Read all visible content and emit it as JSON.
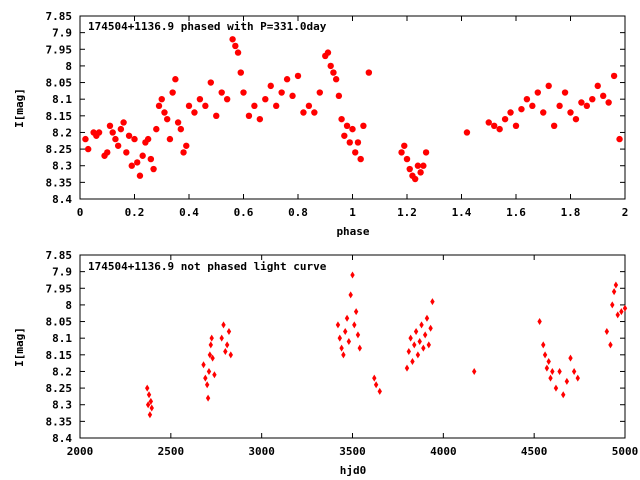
{
  "chart_data": [
    {
      "type": "scatter",
      "title": "174504+1136.9 phased with P=331.0day",
      "xlabel": "phase",
      "ylabel": "I[mag]",
      "xlim": [
        0,
        2
      ],
      "ylim": [
        8.4,
        7.85
      ],
      "y_inverted": true,
      "x_ticks": [
        "0",
        "0.2",
        "0.4",
        "0.6",
        "0.8",
        "1",
        "1.2",
        "1.4",
        "1.6",
        "1.8",
        "2"
      ],
      "y_ticks": [
        "7.85",
        "7.9",
        "7.95",
        "8",
        "8.05",
        "8.1",
        "8.15",
        "8.2",
        "8.25",
        "8.3",
        "8.35",
        "8.4"
      ],
      "marker_color": "#ff0000",
      "marker": "filled-circle",
      "series": [
        {
          "x": [
            0.02,
            0.03,
            0.05,
            0.06,
            0.07,
            0.09,
            0.1,
            0.11,
            0.12,
            0.13,
            0.14,
            0.15,
            0.16,
            0.17,
            0.18,
            0.19,
            0.2,
            0.21,
            0.22,
            0.23,
            0.24,
            0.25,
            0.26,
            0.27,
            0.28,
            0.29,
            0.3,
            0.31,
            0.32,
            0.33,
            0.34,
            0.35,
            0.36,
            0.37,
            0.38,
            0.39,
            0.4,
            0.42,
            0.44,
            0.46,
            0.48,
            0.5,
            0.52,
            0.54,
            0.56,
            0.57,
            0.58,
            0.59,
            0.6,
            0.62,
            0.64,
            0.66,
            0.68,
            0.7,
            0.72,
            0.74,
            0.76,
            0.78,
            0.8,
            0.82,
            0.84,
            0.86,
            0.88,
            0.9,
            0.91,
            0.92,
            0.93,
            0.94,
            0.95,
            0.96,
            0.97,
            0.98,
            0.99,
            1.0,
            1.01,
            1.02,
            1.03,
            1.04,
            1.06,
            1.18,
            1.19,
            1.2,
            1.21,
            1.22,
            1.23,
            1.24,
            1.25,
            1.26,
            1.27,
            1.42,
            1.5,
            1.52,
            1.54,
            1.56,
            1.58,
            1.6,
            1.62,
            1.64,
            1.66,
            1.68,
            1.7,
            1.72,
            1.74,
            1.76,
            1.78,
            1.8,
            1.82,
            1.84,
            1.86,
            1.88,
            1.9,
            1.92,
            1.94,
            1.96,
            1.98
          ],
          "y": [
            8.22,
            8.25,
            8.2,
            8.21,
            8.2,
            8.27,
            8.26,
            8.18,
            8.2,
            8.22,
            8.24,
            8.19,
            8.17,
            8.26,
            8.21,
            8.3,
            8.22,
            8.29,
            8.33,
            8.27,
            8.23,
            8.22,
            8.28,
            8.31,
            8.19,
            8.12,
            8.1,
            8.14,
            8.16,
            8.22,
            8.08,
            8.04,
            8.17,
            8.19,
            8.26,
            8.24,
            8.12,
            8.14,
            8.1,
            8.12,
            8.05,
            8.15,
            8.08,
            8.1,
            7.92,
            7.94,
            7.96,
            8.02,
            8.08,
            8.15,
            8.12,
            8.16,
            8.1,
            8.06,
            8.12,
            8.08,
            8.04,
            8.09,
            8.03,
            8.14,
            8.12,
            8.14,
            8.08,
            7.97,
            7.96,
            8.0,
            8.02,
            8.04,
            8.09,
            8.16,
            8.21,
            8.18,
            8.23,
            8.19,
            8.26,
            8.23,
            8.28,
            8.18,
            8.02,
            8.26,
            8.24,
            8.28,
            8.31,
            8.33,
            8.34,
            8.3,
            8.32,
            8.3,
            8.26,
            8.2,
            8.17,
            8.18,
            8.19,
            8.16,
            8.14,
            8.18,
            8.13,
            8.1,
            8.12,
            8.08,
            8.14,
            8.06,
            8.18,
            8.12,
            8.08,
            8.14,
            8.16,
            8.11,
            8.12,
            8.1,
            8.06,
            8.09,
            8.11,
            8.03,
            8.22
          ]
        }
      ]
    },
    {
      "type": "scatter",
      "title": "174504+1136.9 not phased light curve",
      "xlabel": "hjd0",
      "ylabel": "I[mag]",
      "xlim": [
        2000,
        5000
      ],
      "ylim": [
        8.4,
        7.85
      ],
      "y_inverted": true,
      "x_ticks": [
        "2000",
        "2500",
        "3000",
        "3500",
        "4000",
        "4500",
        "5000"
      ],
      "y_ticks": [
        "7.85",
        "7.9",
        "7.95",
        "8",
        "8.05",
        "8.1",
        "8.15",
        "8.2",
        "8.25",
        "8.3",
        "8.35",
        "8.4"
      ],
      "marker_color": "#ff0000",
      "marker": "diamond",
      "series": [
        {
          "x": [
            2370,
            2375,
            2380,
            2385,
            2390,
            2395,
            2680,
            2690,
            2700,
            2705,
            2710,
            2715,
            2720,
            2725,
            2730,
            2740,
            2780,
            2790,
            2800,
            2810,
            2820,
            2830,
            3420,
            3430,
            3440,
            3450,
            3460,
            3470,
            3480,
            3490,
            3500,
            3510,
            3520,
            3530,
            3540,
            3620,
            3630,
            3650,
            3800,
            3810,
            3820,
            3830,
            3840,
            3850,
            3860,
            3870,
            3880,
            3890,
            3900,
            3910,
            3920,
            3930,
            3940,
            4170,
            4530,
            4550,
            4560,
            4570,
            4580,
            4590,
            4600,
            4620,
            4640,
            4660,
            4680,
            4700,
            4720,
            4740,
            4900,
            4920,
            4930,
            4940,
            4950,
            4960,
            4980,
            5000
          ],
          "y": [
            8.25,
            8.3,
            8.27,
            8.33,
            8.29,
            8.31,
            8.18,
            8.22,
            8.24,
            8.28,
            8.2,
            8.15,
            8.12,
            8.1,
            8.16,
            8.21,
            8.1,
            8.06,
            8.14,
            8.12,
            8.08,
            8.15,
            8.06,
            8.1,
            8.13,
            8.15,
            8.08,
            8.04,
            8.11,
            7.97,
            7.91,
            8.06,
            8.02,
            8.09,
            8.13,
            8.22,
            8.24,
            8.26,
            8.19,
            8.14,
            8.1,
            8.17,
            8.12,
            8.08,
            8.15,
            8.11,
            8.06,
            8.13,
            8.09,
            8.04,
            8.12,
            8.07,
            7.99,
            8.2,
            8.05,
            8.12,
            8.15,
            8.19,
            8.17,
            8.22,
            8.2,
            8.25,
            8.2,
            8.27,
            8.23,
            8.16,
            8.2,
            8.22,
            8.08,
            8.12,
            8.0,
            7.96,
            7.94,
            8.03,
            8.02,
            8.01
          ]
        }
      ]
    }
  ]
}
